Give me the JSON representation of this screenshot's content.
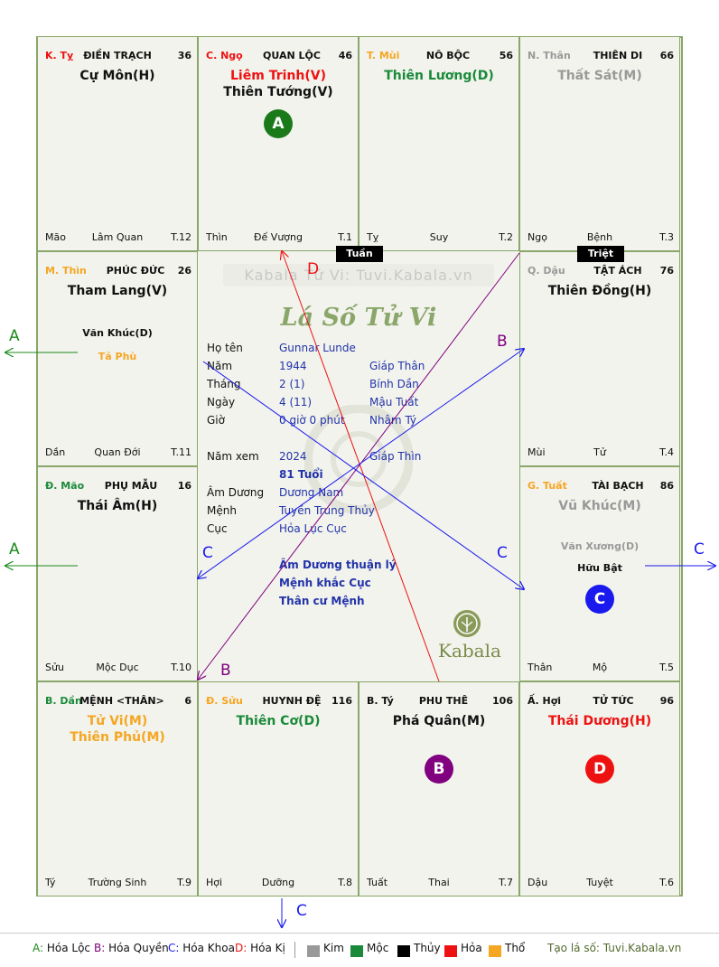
{
  "palaces": {
    "ty_top": {
      "branch": "K. Tỵ",
      "palace": "ĐIỀN TRẠCH",
      "num": "36",
      "star1": "Cự Môn(H)",
      "star2": "",
      "bl": "Mão",
      "bc": "Lâm Quan",
      "br": "T.12"
    },
    "ngo": {
      "branch": "C. Ngọ",
      "palace": "QUAN LỘC",
      "num": "46",
      "star1": "Liêm Trinh(V)",
      "star2": "Thiên Tướng(V)",
      "bl": "Thìn",
      "bc": "Đế Vượng",
      "br": "T.1"
    },
    "mui": {
      "branch": "T. Mùi",
      "palace": "NÔ BỘC",
      "num": "56",
      "star1": "Thiên Lương(D)",
      "star2": "",
      "bl": "Tỵ",
      "bc": "Suy",
      "br": "T.2"
    },
    "than_top": {
      "branch": "N. Thân",
      "palace": "THIÊN DI",
      "num": "66",
      "star1": "Thất Sát(M)",
      "star2": "",
      "bl": "Ngọ",
      "bc": "Bệnh",
      "br": "T.3"
    },
    "thin": {
      "branch": "M. Thìn",
      "palace": "PHÚC ĐỨC",
      "num": "26",
      "star1": "Tham Lang(V)",
      "minor1": "Văn Khúc(D)",
      "minor2": "Tả Phù",
      "bl": "Dần",
      "bc": "Quan Đới",
      "br": "T.11"
    },
    "dau": {
      "branch": "Q. Dậu",
      "palace": "TẬT ÁCH",
      "num": "76",
      "star1": "Thiên Đồng(H)",
      "bl": "Mùi",
      "bc": "Tử",
      "br": "T.4"
    },
    "mao": {
      "branch": "Đ. Mão",
      "palace": "PHỤ MẪU",
      "num": "16",
      "star1": "Thái Âm(H)",
      "bl": "Sửu",
      "bc": "Mộc Dục",
      "br": "T.10"
    },
    "tuat": {
      "branch": "G. Tuất",
      "palace": "TÀI BẠCH",
      "num": "86",
      "star1": "Vũ Khúc(M)",
      "minor1": "Văn Xương(D)",
      "minor2": "Hữu Bật",
      "bl": "Thân",
      "bc": "Mộ",
      "br": "T.5"
    },
    "dan": {
      "branch": "B. Dần",
      "palace": "MỆNH <THÂN>",
      "num": "6",
      "star1": "Tử Vi(M)",
      "star2": "Thiên Phủ(M)",
      "bl": "Tý",
      "bc": "Trường Sinh",
      "br": "T.9"
    },
    "suu": {
      "branch": "Đ. Sửu",
      "palace": "HUYNH ĐỆ",
      "num": "116",
      "star1": "Thiên Cơ(D)",
      "bl": "Hợi",
      "bc": "Dưỡng",
      "br": "T.8"
    },
    "ty_bot": {
      "branch": "B. Tý",
      "palace": "PHU THÊ",
      "num": "106",
      "star1": "Phá Quân(M)",
      "bl": "Tuất",
      "bc": "Thai",
      "br": "T.7"
    },
    "hoi": {
      "branch": "Ấ. Hợi",
      "palace": "TỬ TỨC",
      "num": "96",
      "star1": "Thái Dương(H)",
      "bl": "Dậu",
      "bc": "Tuyệt",
      "br": "T.6"
    }
  },
  "tags": {
    "tuan": "Tuần",
    "triet": "Triệt"
  },
  "badges": {
    "a": "A",
    "b": "B",
    "c": "C",
    "d": "D"
  },
  "center": {
    "site": "Kabala Tử Vi: Tuvi.Kabala.vn",
    "script": "Lá Số Tử Vi",
    "rows": [
      {
        "label": "Họ tên",
        "v1": "Gunnar Lunde",
        "v2": ""
      },
      {
        "label": "Năm",
        "v1": "1944",
        "v2": "Giáp Thân"
      },
      {
        "label": "Tháng",
        "v1": "2  (1)",
        "v2": "Bính Dần"
      },
      {
        "label": "Ngày",
        "v1": "4  (11)",
        "v2": "Mậu Tuất"
      },
      {
        "label": "Giờ",
        "v1": "0 giờ 0 phút",
        "v2": "Nhâm Tý"
      },
      {
        "label": "Năm xem",
        "v1": "2024",
        "v2": "Giáp Thìn"
      },
      {
        "label": "",
        "v1": "81 Tuổi",
        "v2": ""
      },
      {
        "label": "Âm Dương",
        "v1": "Dương Nam",
        "v2": ""
      },
      {
        "label": "Mệnh",
        "v1": "Tuyền Trung Thủy",
        "v2": ""
      },
      {
        "label": "Cục",
        "v1": "Hỏa Lục Cục",
        "v2": ""
      }
    ],
    "notes": [
      "Âm Dương thuận lý",
      "Mệnh khắc Cục",
      "Thân cư Mệnh"
    ],
    "brand": "Kabala"
  },
  "arrow_labels": {
    "a1": "A",
    "a2": "A",
    "b1": "B",
    "b2": "B",
    "c1": "C",
    "c2": "C",
    "c3": "C",
    "c4": "C",
    "d1": "D"
  },
  "legend": {
    "a_key": "A:",
    "a": "Hóa Lộc",
    "b_key": "B:",
    "b": "Hóa Quyền",
    "c_key": "C:",
    "c": "Hóa Khoa",
    "d_key": "D:",
    "d": "Hóa Kị",
    "kim": "Kim",
    "moc": "Mộc",
    "thuy": "Thủy",
    "hoa": "Hỏa",
    "tho": "Thổ",
    "credit": "Tạo lá số: Tuvi.Kabala.vn"
  },
  "colors": {
    "kim": "#999999",
    "moc": "#1a8a3a",
    "thuy": "#000000",
    "hoa": "#ee1111",
    "tho": "#f5a623",
    "a": "#1a8a1a",
    "b": "#800080",
    "c": "#1a1aee",
    "d": "#ee1111",
    "grid": "#8aa66a"
  }
}
